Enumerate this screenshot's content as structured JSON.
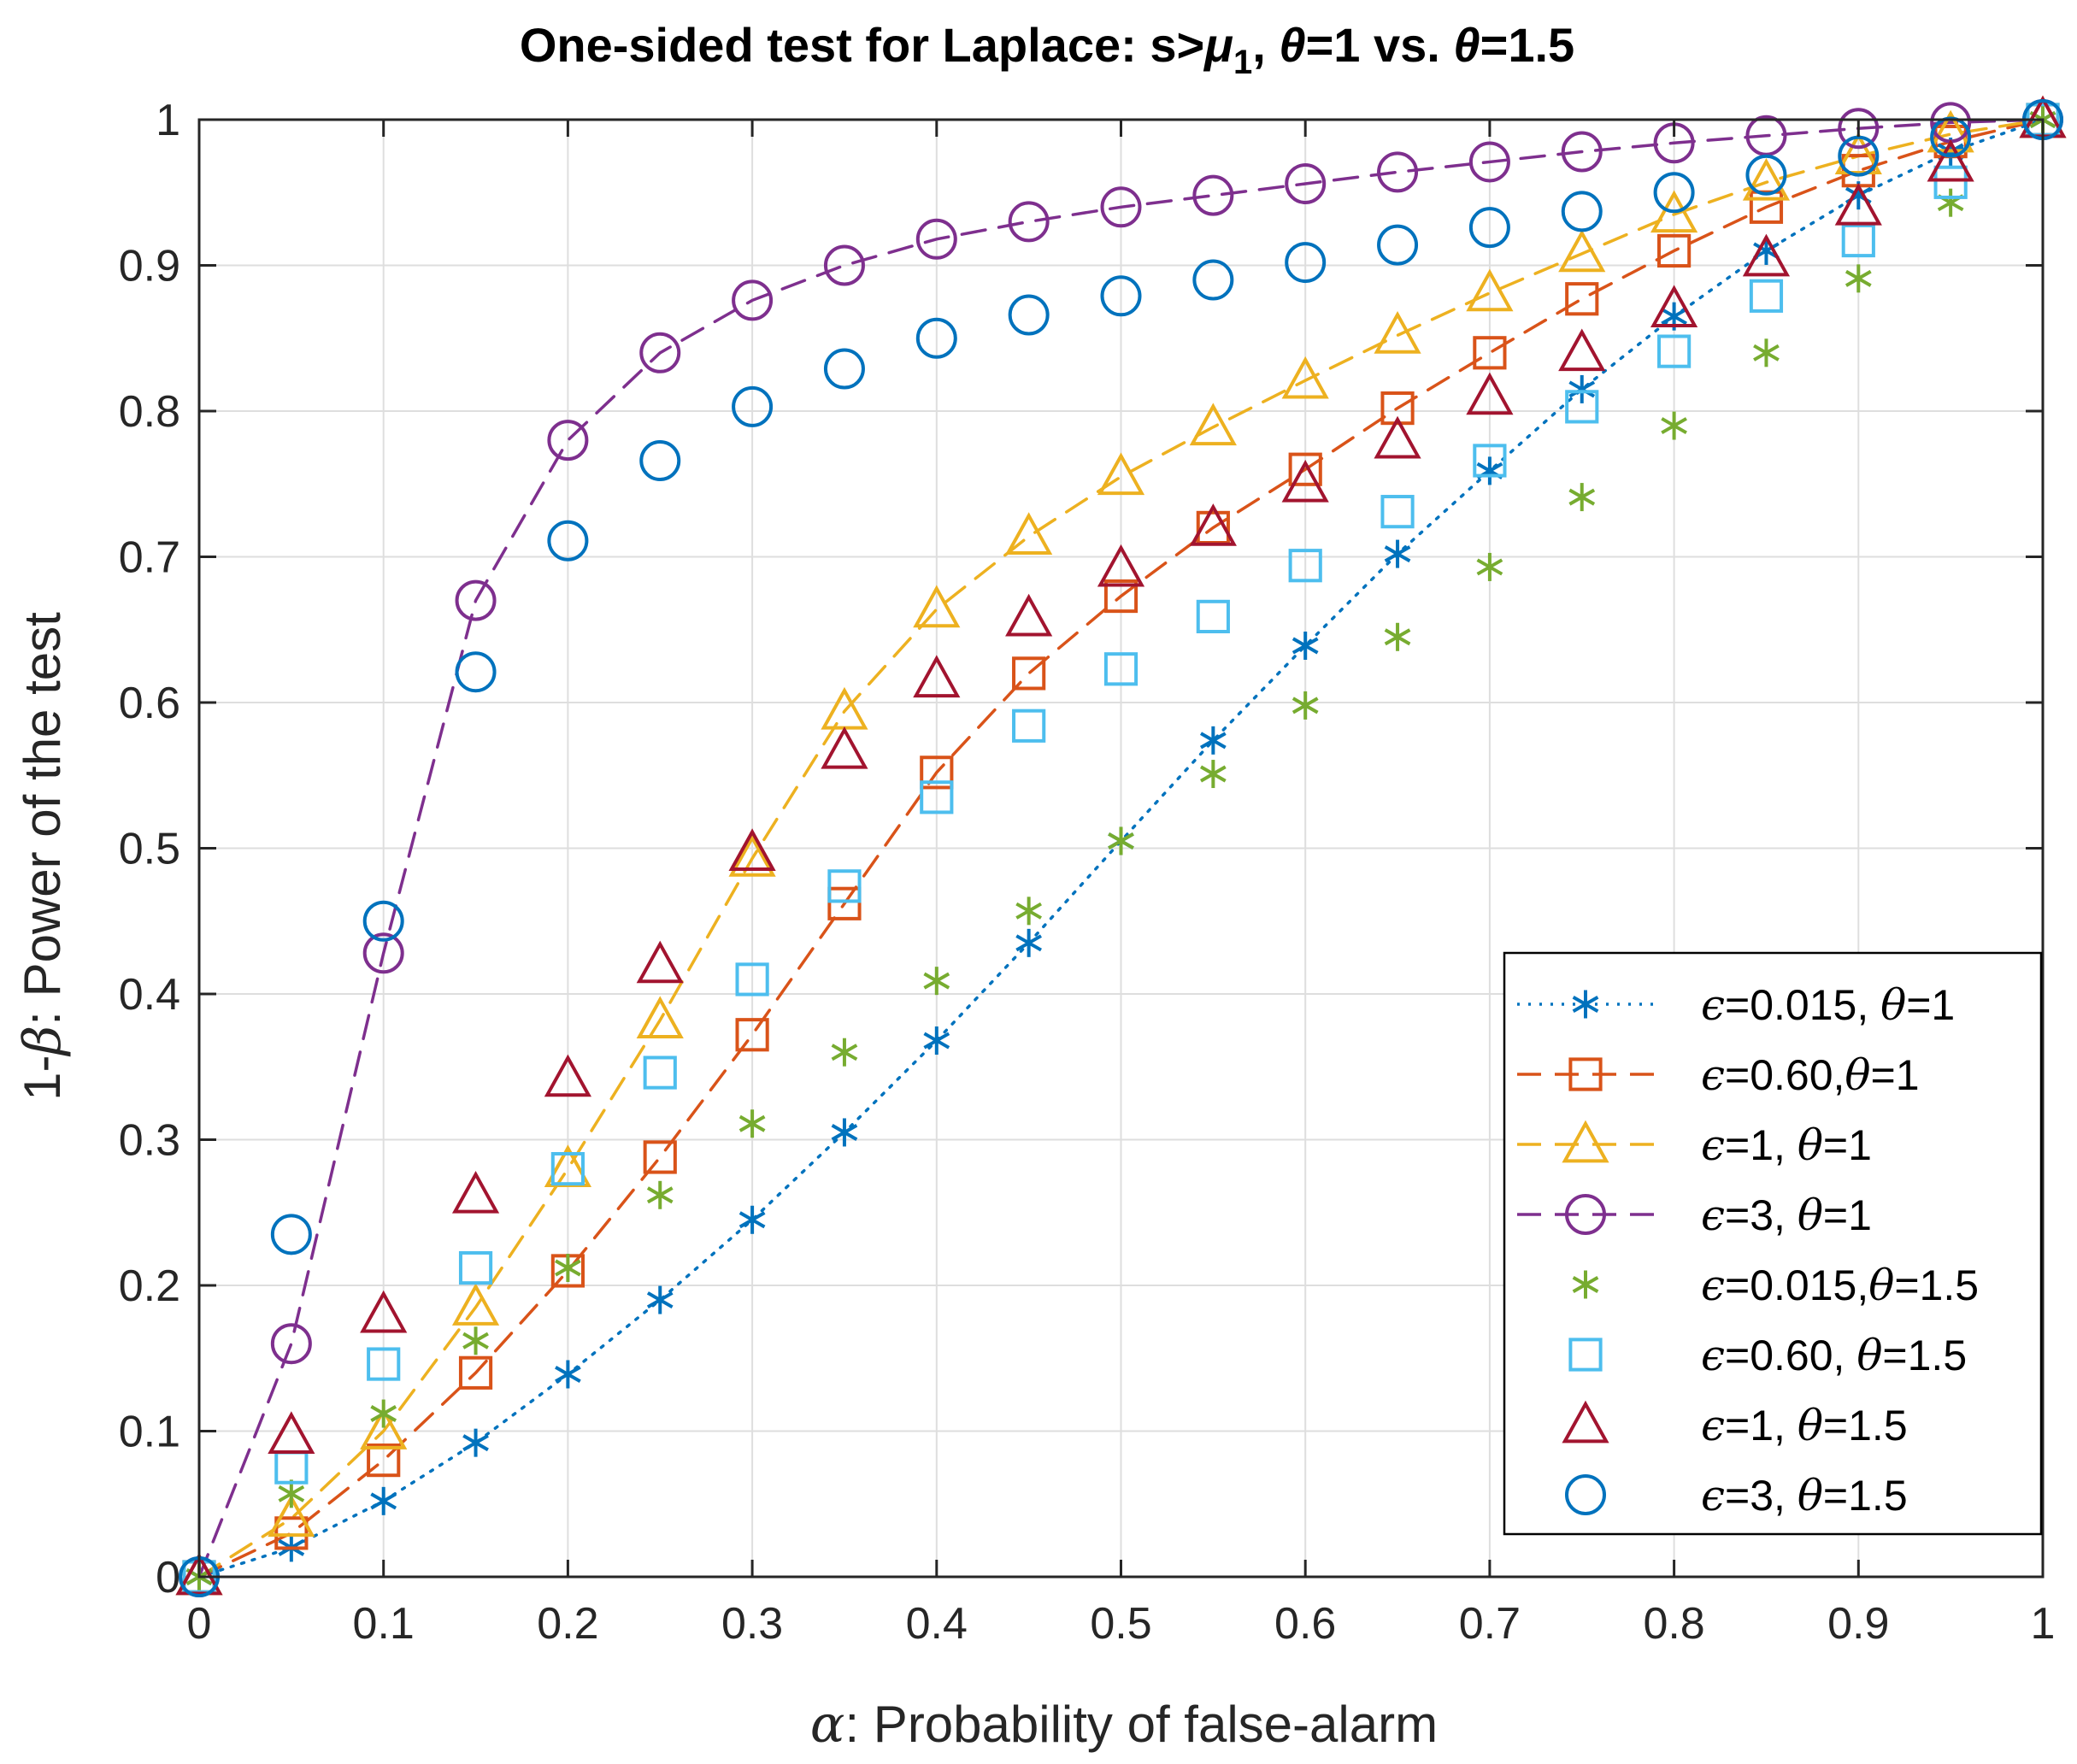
{
  "chart_data": {
    "type": "line",
    "title": "One-sided test for Laplace: s>μ1, θ=1 vs. θ=1.5",
    "title_parts": {
      "prefix": "One-sided test for Laplace: s>",
      "mu": "μ",
      "mu_sub": "1",
      "middle": ", ",
      "theta_a": "θ",
      "eq1": "=1 vs. ",
      "theta_b": "θ",
      "eq2": "=1.5"
    },
    "xlabel": "α: Probability of false-alarm",
    "xlabel_parts": {
      "symbol": "α",
      "text": ": Probability of false-alarm"
    },
    "ylabel": "1-β: Power of the test",
    "ylabel_parts": {
      "prefix": "1-",
      "symbol": "β",
      "text": ": Power of the test"
    },
    "xlim": [
      0,
      1
    ],
    "ylim": [
      0,
      1
    ],
    "grid": true,
    "legend_position": "bottom-right",
    "xticks": [
      "0",
      "0.1",
      "0.2",
      "0.3",
      "0.4",
      "0.5",
      "0.6",
      "0.7",
      "0.8",
      "0.9",
      "1"
    ],
    "yticks": [
      "0",
      "0.1",
      "0.2",
      "0.3",
      "0.4",
      "0.5",
      "0.6",
      "0.7",
      "0.8",
      "0.9",
      "1"
    ],
    "x": [
      0,
      0.05,
      0.1,
      0.15,
      0.2,
      0.25,
      0.3,
      0.35,
      0.4,
      0.45,
      0.5,
      0.55,
      0.6,
      0.65,
      0.7,
      0.75,
      0.8,
      0.85,
      0.9,
      0.95,
      1
    ],
    "series": [
      {
        "name": "ϵ=0.015, θ=1",
        "color": "#0072BD",
        "marker": "asterisk",
        "line": "dotted",
        "values": [
          0,
          0.02,
          0.052,
          0.092,
          0.139,
          0.19,
          0.245,
          0.305,
          0.368,
          0.435,
          0.505,
          0.574,
          0.639,
          0.702,
          0.759,
          0.815,
          0.865,
          0.91,
          0.948,
          0.978,
          1
        ]
      },
      {
        "name": "ϵ=0.60,θ=1",
        "color": "#D95319",
        "marker": "square",
        "line": "dashed",
        "values": [
          0,
          0.03,
          0.08,
          0.14,
          0.21,
          0.288,
          0.372,
          0.462,
          0.552,
          0.62,
          0.673,
          0.72,
          0.76,
          0.802,
          0.84,
          0.877,
          0.91,
          0.94,
          0.965,
          0.985,
          1
        ]
      },
      {
        "name": "ϵ=1, θ=1",
        "color": "#EDB120",
        "marker": "triangle",
        "line": "dashed",
        "values": [
          0,
          0.04,
          0.1,
          0.185,
          0.28,
          0.382,
          0.493,
          0.594,
          0.664,
          0.714,
          0.755,
          0.789,
          0.821,
          0.852,
          0.881,
          0.908,
          0.935,
          0.957,
          0.975,
          0.99,
          1
        ]
      },
      {
        "name": "ϵ=3, θ=1",
        "color": "#7E2F8E",
        "marker": "circle",
        "line": "dashed",
        "values": [
          0,
          0.16,
          0.428,
          0.67,
          0.78,
          0.84,
          0.876,
          0.9,
          0.918,
          0.93,
          0.94,
          0.948,
          0.956,
          0.964,
          0.971,
          0.978,
          0.984,
          0.989,
          0.994,
          0.998,
          1
        ]
      },
      {
        "name": "ϵ=0.015,θ=1.5",
        "color": "#77AC30",
        "marker": "asterisk",
        "line": "none",
        "values": [
          0,
          0.057,
          0.112,
          0.162,
          0.212,
          0.262,
          0.311,
          0.36,
          0.409,
          0.457,
          0.505,
          0.551,
          0.598,
          0.645,
          0.693,
          0.741,
          0.79,
          0.84,
          0.891,
          0.943,
          1
        ]
      },
      {
        "name": "ϵ=0.60, θ=1.5",
        "color": "#4DBEEE",
        "marker": "square",
        "line": "none",
        "values": [
          0,
          0.075,
          0.146,
          0.212,
          0.28,
          0.346,
          0.41,
          0.474,
          0.535,
          0.584,
          0.623,
          0.659,
          0.694,
          0.731,
          0.766,
          0.803,
          0.841,
          0.879,
          0.917,
          0.957,
          1
        ]
      },
      {
        "name": "ϵ=1, θ=1.5",
        "color": "#A2142F",
        "marker": "triangle",
        "line": "none",
        "values": [
          0,
          0.097,
          0.18,
          0.262,
          0.342,
          0.42,
          0.497,
          0.567,
          0.616,
          0.658,
          0.692,
          0.72,
          0.75,
          0.78,
          0.81,
          0.84,
          0.87,
          0.905,
          0.94,
          0.97,
          1
        ]
      },
      {
        "name": "ϵ=3, θ=1.5",
        "color": "#0072BD",
        "marker": "circle",
        "line": "none",
        "values": [
          0,
          0.235,
          0.45,
          0.621,
          0.711,
          0.766,
          0.803,
          0.829,
          0.85,
          0.866,
          0.879,
          0.89,
          0.902,
          0.914,
          0.926,
          0.937,
          0.95,
          0.962,
          0.975,
          0.988,
          1
        ]
      }
    ],
    "legend_entries": [
      {
        "eps": "ϵ",
        "a": "=0.015, ",
        "theta": "θ",
        "b": "=1"
      },
      {
        "eps": "ϵ",
        "a": "=0.60,",
        "theta": "θ",
        "b": "=1"
      },
      {
        "eps": "ϵ",
        "a": "=1, ",
        "theta": "θ",
        "b": "=1"
      },
      {
        "eps": "ϵ",
        "a": "=3, ",
        "theta": "θ",
        "b": "=1"
      },
      {
        "eps": "ϵ",
        "a": "=0.015,",
        "theta": "θ",
        "b": "=1.5"
      },
      {
        "eps": "ϵ",
        "a": "=0.60, ",
        "theta": "θ",
        "b": "=1.5"
      },
      {
        "eps": "ϵ",
        "a": "=1, ",
        "theta": "θ",
        "b": "=1.5"
      },
      {
        "eps": "ϵ",
        "a": "=3, ",
        "theta": "θ",
        "b": "=1.5"
      }
    ]
  }
}
